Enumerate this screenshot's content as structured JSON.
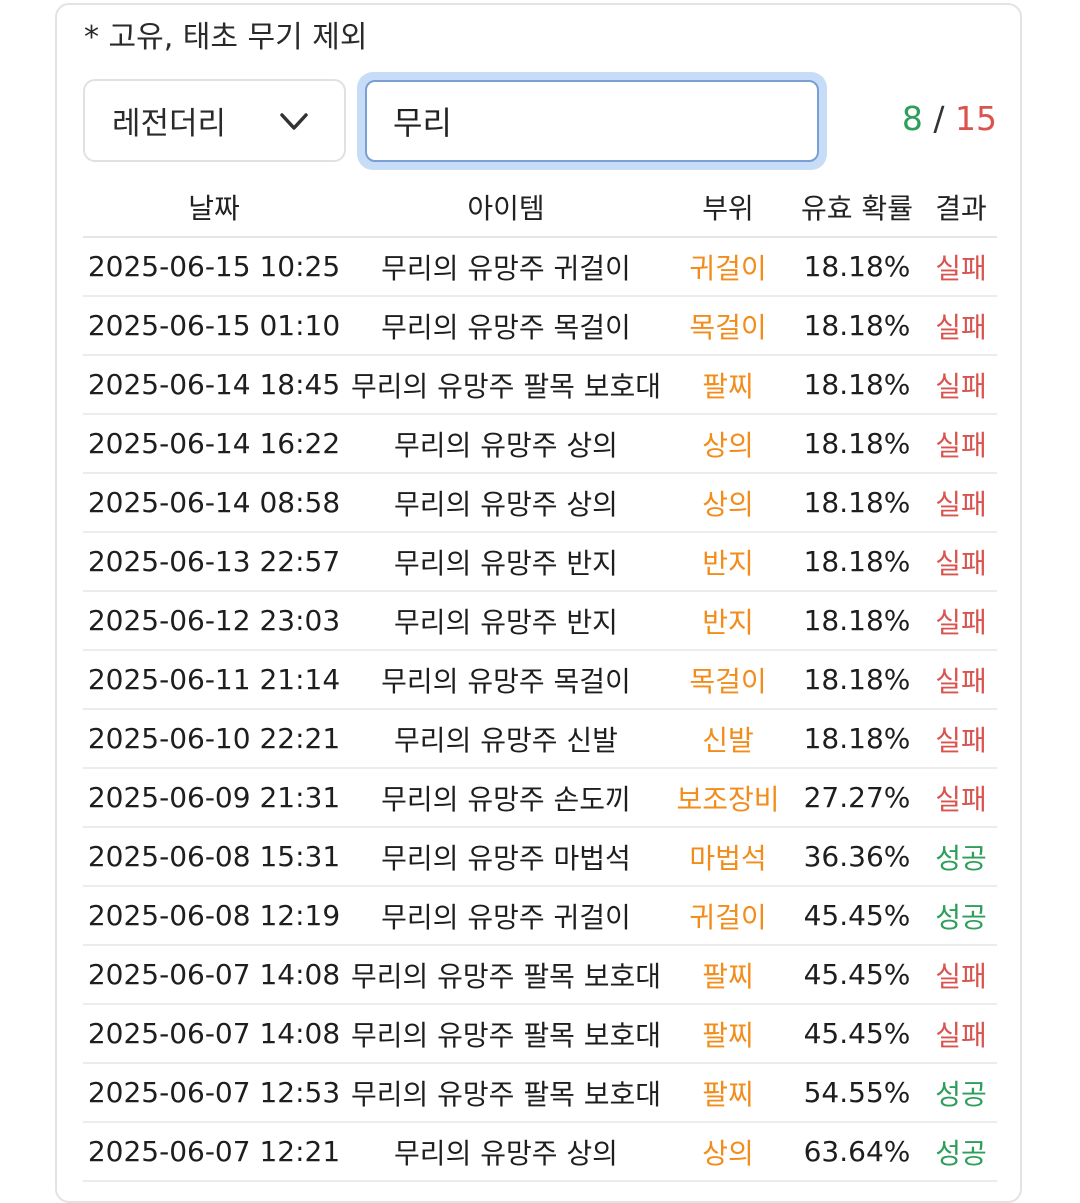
{
  "note": "* 고유, 태초 무기 제외",
  "filter": {
    "selected": "레전더리",
    "icon": "chevron-down-icon"
  },
  "search": {
    "value": "무리"
  },
  "counter": {
    "success": "8",
    "separator": " / ",
    "total": "15"
  },
  "colors": {
    "part": "#f28c1b",
    "fail": "#d9534f",
    "success": "#2e9e5b",
    "focus": "#c7ddf7"
  },
  "table": {
    "headers": [
      "날짜",
      "아이템",
      "부위",
      "유효 확률",
      "결과"
    ],
    "rows": [
      {
        "date": "2025-06-15 10:25",
        "item": "무리의 유망주 귀걸이",
        "part": "귀걸이",
        "prob": "18.18%",
        "result": "실패"
      },
      {
        "date": "2025-06-15 01:10",
        "item": "무리의 유망주 목걸이",
        "part": "목걸이",
        "prob": "18.18%",
        "result": "실패"
      },
      {
        "date": "2025-06-14 18:45",
        "item": "무리의 유망주 팔목 보호대",
        "part": "팔찌",
        "prob": "18.18%",
        "result": "실패"
      },
      {
        "date": "2025-06-14 16:22",
        "item": "무리의 유망주 상의",
        "part": "상의",
        "prob": "18.18%",
        "result": "실패"
      },
      {
        "date": "2025-06-14 08:58",
        "item": "무리의 유망주 상의",
        "part": "상의",
        "prob": "18.18%",
        "result": "실패"
      },
      {
        "date": "2025-06-13 22:57",
        "item": "무리의 유망주 반지",
        "part": "반지",
        "prob": "18.18%",
        "result": "실패"
      },
      {
        "date": "2025-06-12 23:03",
        "item": "무리의 유망주 반지",
        "part": "반지",
        "prob": "18.18%",
        "result": "실패"
      },
      {
        "date": "2025-06-11 21:14",
        "item": "무리의 유망주 목걸이",
        "part": "목걸이",
        "prob": "18.18%",
        "result": "실패"
      },
      {
        "date": "2025-06-10 22:21",
        "item": "무리의 유망주 신발",
        "part": "신발",
        "prob": "18.18%",
        "result": "실패"
      },
      {
        "date": "2025-06-09 21:31",
        "item": "무리의 유망주 손도끼",
        "part": "보조장비",
        "prob": "27.27%",
        "result": "실패"
      },
      {
        "date": "2025-06-08 15:31",
        "item": "무리의 유망주 마법석",
        "part": "마법석",
        "prob": "36.36%",
        "result": "성공"
      },
      {
        "date": "2025-06-08 12:19",
        "item": "무리의 유망주 귀걸이",
        "part": "귀걸이",
        "prob": "45.45%",
        "result": "성공"
      },
      {
        "date": "2025-06-07 14:08",
        "item": "무리의 유망주 팔목 보호대",
        "part": "팔찌",
        "prob": "45.45%",
        "result": "실패"
      },
      {
        "date": "2025-06-07 14:08",
        "item": "무리의 유망주 팔목 보호대",
        "part": "팔찌",
        "prob": "45.45%",
        "result": "실패"
      },
      {
        "date": "2025-06-07 12:53",
        "item": "무리의 유망주 팔목 보호대",
        "part": "팔찌",
        "prob": "54.55%",
        "result": "성공"
      },
      {
        "date": "2025-06-07 12:21",
        "item": "무리의 유망주 상의",
        "part": "상의",
        "prob": "63.64%",
        "result": "성공"
      }
    ]
  }
}
